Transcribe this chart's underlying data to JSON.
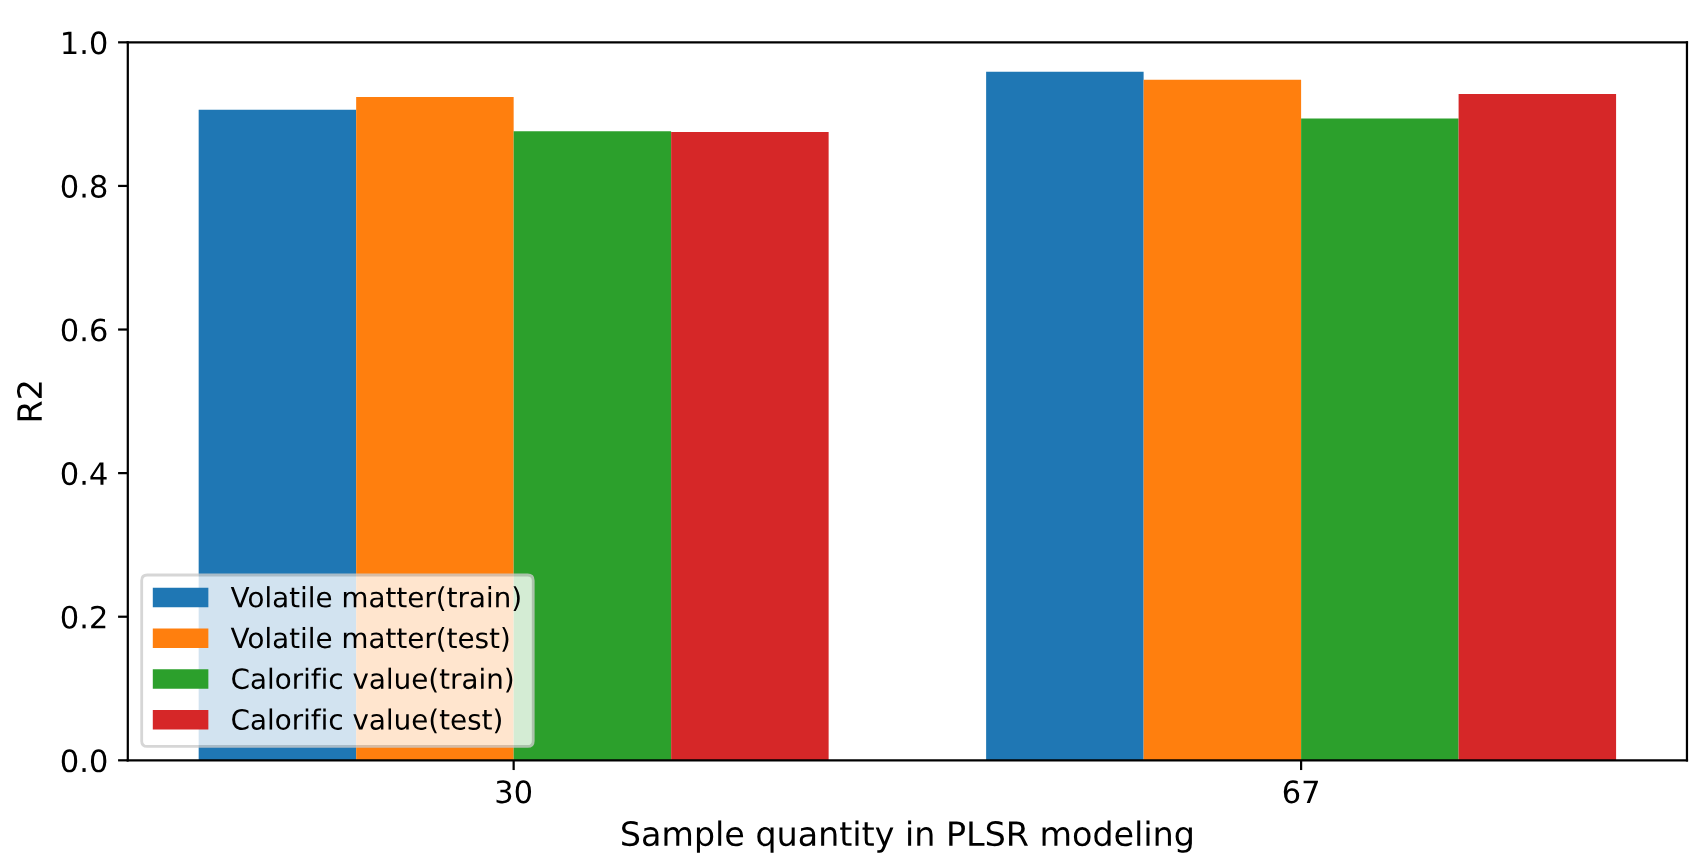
{
  "chart_data": {
    "type": "bar",
    "xlabel": "Sample quantity in PLSR modeling",
    "ylabel": "R2",
    "categories": [
      "30",
      "67"
    ],
    "series": [
      {
        "name": "Volatile matter(train)",
        "color": "#1f77b4",
        "values": [
          0.906,
          0.959
        ]
      },
      {
        "name": "Volatile matter(test)",
        "color": "#ff7f0e",
        "values": [
          0.924,
          0.948
        ]
      },
      {
        "name": "Calorific value(train)",
        "color": "#2ca02c",
        "values": [
          0.876,
          0.894
        ]
      },
      {
        "name": "Calorific value(test)",
        "color": "#d62728",
        "values": [
          0.875,
          0.928
        ]
      }
    ],
    "ylim": [
      0,
      1.0
    ],
    "yticks": [
      {
        "value": 0,
        "label": "0.0"
      },
      0.2,
      0.4,
      0.6,
      0.8,
      {
        "value": 1.0,
        "label": "1.0"
      }
    ],
    "grid": false,
    "legend": "bottom left"
  }
}
